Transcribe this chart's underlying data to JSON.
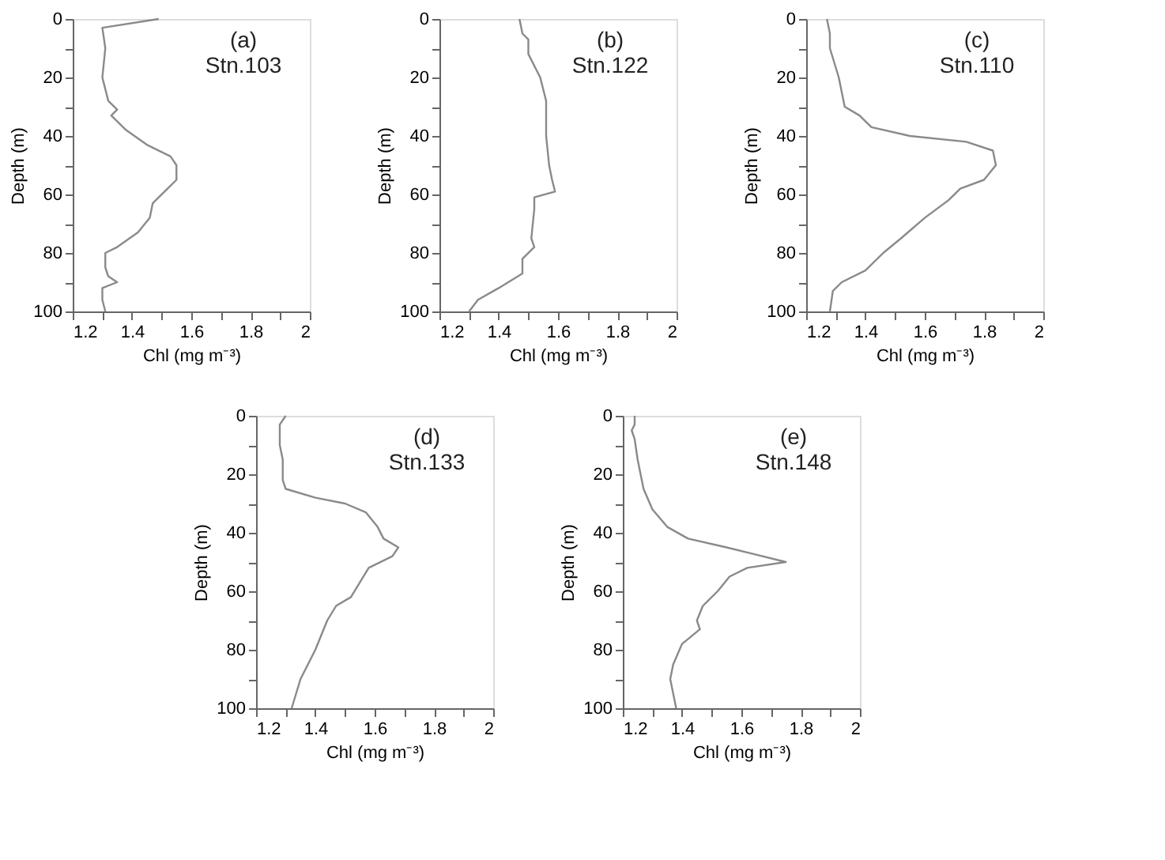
{
  "chart_data": [
    {
      "type": "line",
      "xlabel": "Chl (mg m⁻³)",
      "ylabel": "Depth (m)",
      "annotations": [
        "(a)",
        "Stn.103"
      ],
      "xlim": [
        1.2,
        2
      ],
      "xticks": [
        1.2,
        {
          "value": 1.3,
          "label": null
        },
        1.4,
        {
          "value": 1.5,
          "label": null
        },
        1.6,
        {
          "value": 1.7,
          "label": null
        },
        1.8,
        {
          "value": 1.9,
          "label": null
        },
        2
      ],
      "ylim": [
        100,
        0
      ],
      "yticks": [
        0,
        {
          "value": 10,
          "label": null
        },
        20,
        {
          "value": 30,
          "label": null
        },
        40,
        {
          "value": 50,
          "label": null
        },
        60,
        {
          "value": 70,
          "label": null
        },
        80,
        {
          "value": 90,
          "label": null
        },
        100
      ],
      "grid": false,
      "marker": "none",
      "line_style": "solid",
      "series": [
        {
          "color": "#8a8a8a",
          "x": [
            1.49,
            1.3,
            1.31,
            1.3,
            1.32,
            1.35,
            1.33,
            1.38,
            1.45,
            1.53,
            1.55,
            1.55,
            1.52,
            1.47,
            1.46,
            1.42,
            1.35,
            1.31,
            1.31,
            1.32,
            1.35,
            1.3,
            1.3,
            1.31
          ],
          "values": [
            0,
            3,
            10,
            20,
            28,
            31,
            33,
            38,
            43,
            47,
            50,
            55,
            58,
            63,
            68,
            73,
            78,
            80,
            85,
            88,
            90,
            92,
            96,
            100
          ]
        }
      ]
    },
    {
      "type": "line",
      "xlabel": "Chl (mg m⁻³)",
      "ylabel": "Depth (m)",
      "annotations": [
        "(b)",
        "Stn.122"
      ],
      "xlim": [
        1.2,
        2
      ],
      "xticks": [
        1.2,
        {
          "value": 1.3,
          "label": null
        },
        1.4,
        {
          "value": 1.5,
          "label": null
        },
        1.6,
        {
          "value": 1.7,
          "label": null
        },
        1.8,
        {
          "value": 1.9,
          "label": null
        },
        2
      ],
      "ylim": [
        100,
        0
      ],
      "yticks": [
        0,
        {
          "value": 10,
          "label": null
        },
        20,
        {
          "value": 30,
          "label": null
        },
        40,
        {
          "value": 50,
          "label": null
        },
        60,
        {
          "value": 70,
          "label": null
        },
        80,
        {
          "value": 90,
          "label": null
        },
        100
      ],
      "grid": false,
      "marker": "none",
      "line_style": "solid",
      "series": [
        {
          "color": "#8a8a8a",
          "x": [
            1.47,
            1.48,
            1.5,
            1.5,
            1.54,
            1.56,
            1.56,
            1.57,
            1.58,
            1.59,
            1.52,
            1.52,
            1.51,
            1.52,
            1.48,
            1.48,
            1.4,
            1.33,
            1.3
          ],
          "values": [
            0,
            5,
            7,
            12,
            20,
            28,
            40,
            50,
            55,
            59,
            61,
            65,
            75,
            78,
            82,
            87,
            92,
            96,
            100
          ]
        }
      ]
    },
    {
      "type": "line",
      "xlabel": "Chl (mg m⁻³)",
      "ylabel": "Depth (m)",
      "annotations": [
        "(c)",
        "Stn.110"
      ],
      "xlim": [
        1.2,
        2
      ],
      "xticks": [
        1.2,
        {
          "value": 1.3,
          "label": null
        },
        1.4,
        {
          "value": 1.5,
          "label": null
        },
        1.6,
        {
          "value": 1.7,
          "label": null
        },
        1.8,
        {
          "value": 1.9,
          "label": null
        },
        2
      ],
      "ylim": [
        100,
        0
      ],
      "yticks": [
        0,
        {
          "value": 10,
          "label": null
        },
        20,
        {
          "value": 30,
          "label": null
        },
        40,
        {
          "value": 50,
          "label": null
        },
        60,
        {
          "value": 70,
          "label": null
        },
        80,
        {
          "value": 90,
          "label": null
        },
        100
      ],
      "grid": false,
      "marker": "none",
      "line_style": "solid",
      "series": [
        {
          "color": "#8a8a8a",
          "x": [
            1.27,
            1.28,
            1.28,
            1.31,
            1.33,
            1.38,
            1.42,
            1.55,
            1.74,
            1.83,
            1.84,
            1.8,
            1.72,
            1.68,
            1.6,
            1.52,
            1.46,
            1.4,
            1.32,
            1.29,
            1.28
          ],
          "values": [
            0,
            5,
            10,
            20,
            30,
            33,
            37,
            40,
            42,
            45,
            50,
            55,
            58,
            62,
            68,
            75,
            80,
            86,
            90,
            93,
            100
          ]
        }
      ]
    },
    {
      "type": "line",
      "xlabel": "Chl (mg m⁻³)",
      "ylabel": "Depth (m)",
      "annotations": [
        "(d)",
        "Stn.133"
      ],
      "xlim": [
        1.2,
        2
      ],
      "xticks": [
        1.2,
        {
          "value": 1.3,
          "label": null
        },
        1.4,
        {
          "value": 1.5,
          "label": null
        },
        1.6,
        {
          "value": 1.7,
          "label": null
        },
        1.8,
        {
          "value": 1.9,
          "label": null
        },
        2
      ],
      "ylim": [
        100,
        0
      ],
      "yticks": [
        0,
        {
          "value": 10,
          "label": null
        },
        20,
        {
          "value": 30,
          "label": null
        },
        40,
        {
          "value": 50,
          "label": null
        },
        60,
        {
          "value": 70,
          "label": null
        },
        80,
        {
          "value": 90,
          "label": null
        },
        100
      ],
      "grid": false,
      "marker": "none",
      "line_style": "solid",
      "series": [
        {
          "color": "#8a8a8a",
          "x": [
            1.3,
            1.28,
            1.28,
            1.29,
            1.29,
            1.3,
            1.4,
            1.5,
            1.57,
            1.61,
            1.63,
            1.68,
            1.66,
            1.58,
            1.55,
            1.52,
            1.47,
            1.44,
            1.4,
            1.35,
            1.32
          ],
          "values": [
            0,
            3,
            10,
            15,
            22,
            25,
            28,
            30,
            33,
            38,
            42,
            45,
            48,
            52,
            57,
            62,
            65,
            70,
            80,
            90,
            100
          ]
        }
      ]
    },
    {
      "type": "line",
      "xlabel": "Chl (mg m⁻³)",
      "ylabel": "Depth (m)",
      "annotations": [
        "(e)",
        "Stn.148"
      ],
      "xlim": [
        1.2,
        2
      ],
      "xticks": [
        1.2,
        {
          "value": 1.3,
          "label": null
        },
        1.4,
        {
          "value": 1.5,
          "label": null
        },
        1.6,
        {
          "value": 1.7,
          "label": null
        },
        1.8,
        {
          "value": 1.9,
          "label": null
        },
        2
      ],
      "ylim": [
        100,
        0
      ],
      "yticks": [
        0,
        {
          "value": 10,
          "label": null
        },
        20,
        {
          "value": 30,
          "label": null
        },
        40,
        {
          "value": 50,
          "label": null
        },
        60,
        {
          "value": 70,
          "label": null
        },
        80,
        {
          "value": 90,
          "label": null
        },
        100
      ],
      "grid": false,
      "marker": "none",
      "line_style": "solid",
      "series": [
        {
          "color": "#8a8a8a",
          "x": [
            1.24,
            1.24,
            1.23,
            1.24,
            1.25,
            1.27,
            1.3,
            1.35,
            1.42,
            1.55,
            1.63,
            1.75,
            1.62,
            1.56,
            1.52,
            1.47,
            1.45,
            1.46,
            1.4,
            1.37,
            1.36,
            1.38
          ],
          "values": [
            0,
            3,
            5,
            8,
            15,
            25,
            32,
            38,
            42,
            45,
            47,
            50,
            52,
            55,
            60,
            65,
            70,
            73,
            78,
            85,
            90,
            100
          ]
        }
      ]
    }
  ]
}
